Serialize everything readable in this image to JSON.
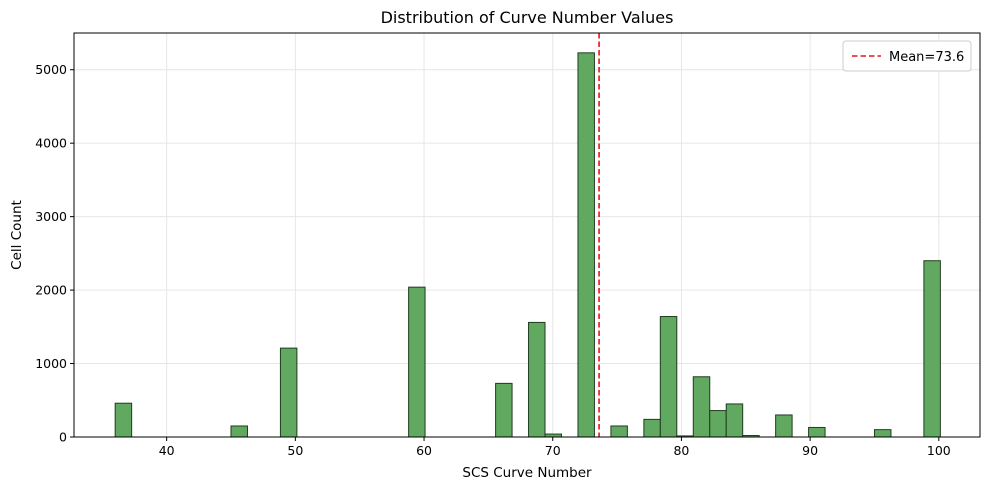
{
  "colors": {
    "bar_fill": "#61a861",
    "bar_edge": "#1f3d1f",
    "mean_line": "#e8141b",
    "grid": "#e6e6e6",
    "axes": "#000000"
  },
  "chart_data": {
    "type": "bar",
    "title": "Distribution of Curve Number Values",
    "xlabel": "SCS Curve Number",
    "ylabel": "Cell Count",
    "xlim": [
      32.8,
      103.2
    ],
    "ylim": [
      0,
      5500
    ],
    "x_ticks": [
      40,
      50,
      60,
      70,
      80,
      90,
      100
    ],
    "y_ticks": [
      0,
      1000,
      2000,
      3000,
      4000,
      5000
    ],
    "grid": true,
    "legend_position": "top-right",
    "bin_width": 1.28,
    "bins": [
      {
        "x0": 36.0,
        "count": 460
      },
      {
        "x0": 45.0,
        "count": 150
      },
      {
        "x0": 48.84,
        "count": 1210
      },
      {
        "x0": 58.8,
        "count": 2040
      },
      {
        "x0": 65.56,
        "count": 730
      },
      {
        "x0": 68.12,
        "count": 1560
      },
      {
        "x0": 69.4,
        "count": 40
      },
      {
        "x0": 71.96,
        "count": 5230
      },
      {
        "x0": 74.52,
        "count": 150
      },
      {
        "x0": 77.08,
        "count": 240
      },
      {
        "x0": 78.36,
        "count": 1640
      },
      {
        "x0": 79.64,
        "count": 15
      },
      {
        "x0": 80.92,
        "count": 820
      },
      {
        "x0": 82.2,
        "count": 360
      },
      {
        "x0": 83.48,
        "count": 450
      },
      {
        "x0": 84.76,
        "count": 20
      },
      {
        "x0": 87.32,
        "count": 300
      },
      {
        "x0": 89.88,
        "count": 130
      },
      {
        "x0": 95.0,
        "count": 100
      },
      {
        "x0": 98.84,
        "count": 2400
      }
    ],
    "mean": {
      "value": 73.6,
      "label": "Mean=73.6"
    }
  }
}
